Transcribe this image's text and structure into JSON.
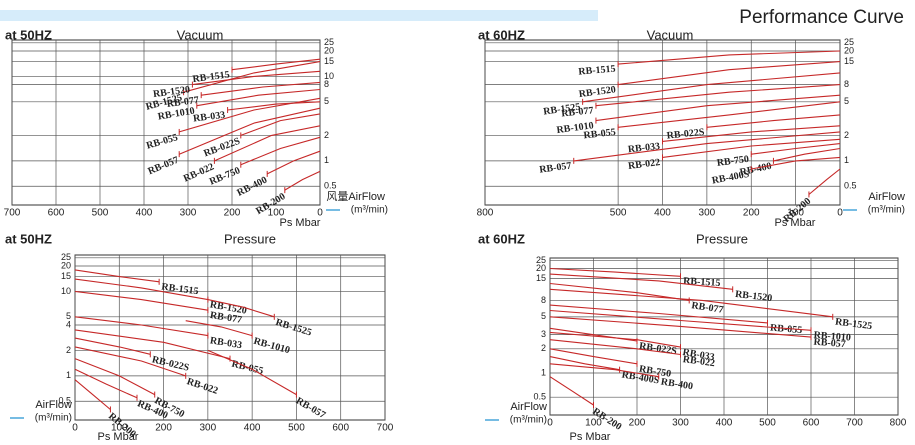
{
  "title": "Performance Curve",
  "chart_data": [
    {
      "type": "line",
      "freq": "at 50HZ",
      "title": "Vacuum",
      "x_label": "Ps Mbar",
      "y_label": "风量AirFlow",
      "y_unit": "(m³/min)",
      "xlim": [
        700,
        0
      ],
      "ylim": [
        0.3,
        27
      ],
      "log_y": true,
      "grid": true,
      "color": "#c62828",
      "accent": "#c00000",
      "xticks": [
        700,
        600,
        500,
        400,
        300,
        200,
        100,
        0
      ],
      "yticks": [
        25,
        20,
        15,
        10,
        8,
        5,
        2,
        1,
        0.5
      ],
      "series": [
        {
          "name": "RB-1525",
          "x": [
            310,
            150,
            0
          ],
          "values": [
            6.5,
            11,
            15
          ]
        },
        {
          "name": "RB-1515",
          "x": [
            200,
            100,
            0
          ],
          "values": [
            12,
            14,
            16
          ]
        },
        {
          "name": "RB-1520",
          "x": [
            290,
            150,
            0
          ],
          "values": [
            8,
            10,
            11.5
          ]
        },
        {
          "name": "RB-077",
          "x": [
            270,
            130,
            0
          ],
          "values": [
            6,
            7.5,
            8.5
          ]
        },
        {
          "name": "RB-1010",
          "x": [
            280,
            140,
            0
          ],
          "values": [
            4.5,
            6,
            7
          ]
        },
        {
          "name": "RB-033",
          "x": [
            210,
            100,
            0
          ],
          "values": [
            4,
            4.7,
            5
          ]
        },
        {
          "name": "RB-055",
          "x": [
            320,
            150,
            0
          ],
          "values": [
            2.2,
            4,
            5.5
          ]
        },
        {
          "name": "RB-057",
          "x": [
            320,
            150,
            0
          ],
          "values": [
            1.2,
            2.8,
            4.2
          ]
        },
        {
          "name": "RB-022S",
          "x": [
            180,
            90,
            0
          ],
          "values": [
            2,
            3,
            3.6
          ]
        },
        {
          "name": "RB-022",
          "x": [
            240,
            110,
            0
          ],
          "values": [
            1,
            2,
            2.6
          ]
        },
        {
          "name": "RB-750",
          "x": [
            180,
            90,
            0
          ],
          "values": [
            0.9,
            1.4,
            1.9
          ]
        },
        {
          "name": "RB-400",
          "x": [
            120,
            60,
            0
          ],
          "values": [
            0.7,
            1,
            1.3
          ]
        },
        {
          "name": "RB-200",
          "x": [
            80,
            40,
            0
          ],
          "values": [
            0.45,
            0.6,
            0.75
          ]
        }
      ]
    },
    {
      "type": "line",
      "freq": "at 60HZ",
      "title": "Vacuum",
      "x_label": "Ps Mbar",
      "y_label": "AirFlow",
      "y_unit": "(m³/min)",
      "xlim": [
        800,
        0
      ],
      "ylim": [
        0.3,
        27
      ],
      "log_y": true,
      "grid": true,
      "color": "#c62828",
      "accent": "#1a8fd0",
      "xticks": [
        800,
        500,
        400,
        300,
        200,
        100,
        0
      ],
      "yticks": [
        25,
        20,
        15,
        8,
        5,
        2,
        1,
        0.5
      ],
      "series": [
        {
          "name": "RB-1515",
          "x": [
            500,
            250,
            0
          ],
          "values": [
            14,
            18,
            20
          ]
        },
        {
          "name": "RB-1520",
          "x": [
            500,
            250,
            0
          ],
          "values": [
            8,
            12,
            15
          ]
        },
        {
          "name": "RB-1525",
          "x": [
            580,
            300,
            0
          ],
          "values": [
            5,
            8,
            11
          ]
        },
        {
          "name": "RB-077",
          "x": [
            550,
            250,
            0
          ],
          "values": [
            4.5,
            6.5,
            8
          ]
        },
        {
          "name": "RB-1010",
          "x": [
            550,
            300,
            0
          ],
          "values": [
            3,
            4.5,
            6
          ]
        },
        {
          "name": "RB-055",
          "x": [
            500,
            250,
            0
          ],
          "values": [
            2.5,
            3.5,
            5
          ]
        },
        {
          "name": "RB-022S",
          "x": [
            300,
            150,
            0
          ],
          "values": [
            2.5,
            3,
            3.5
          ]
        },
        {
          "name": "RB-033",
          "x": [
            400,
            200,
            0
          ],
          "values": [
            1.7,
            2.2,
            2.6
          ]
        },
        {
          "name": "RB-057",
          "x": [
            600,
            300,
            0
          ],
          "values": [
            1,
            1.6,
            2.2
          ]
        },
        {
          "name": "RB-022",
          "x": [
            400,
            200,
            0
          ],
          "values": [
            1.1,
            1.5,
            1.8
          ]
        },
        {
          "name": "RB-750",
          "x": [
            200,
            100,
            0
          ],
          "values": [
            1.2,
            1.4,
            1.6
          ]
        },
        {
          "name": "RB-400",
          "x": [
            150,
            80,
            0
          ],
          "values": [
            1,
            1.2,
            1.4
          ]
        },
        {
          "name": "RB-400S",
          "x": [
            200,
            100,
            0
          ],
          "values": [
            0.8,
            1,
            1.1
          ]
        },
        {
          "name": "RB-200",
          "x": [
            70,
            30,
            0
          ],
          "values": [
            0.4,
            0.6,
            0.8
          ]
        }
      ]
    },
    {
      "type": "line",
      "freq": "at 50HZ",
      "title": "Pressure",
      "x_label": "Ps Mbar",
      "y_label": "AirFlow",
      "y_unit": "(m³/min)",
      "xlim": [
        0,
        700
      ],
      "ylim": [
        0.3,
        27
      ],
      "log_y": true,
      "grid": true,
      "color": "#c62828",
      "accent": "#c00000",
      "xticks": [
        0,
        100,
        200,
        300,
        400,
        500,
        600,
        700
      ],
      "yticks": [
        25,
        20,
        15,
        10,
        5,
        4,
        2,
        1,
        0.5
      ],
      "series": [
        {
          "name": "RB-1515",
          "x": [
            0,
            100,
            190
          ],
          "values": [
            18,
            15,
            13
          ]
        },
        {
          "name": "RB-1520",
          "x": [
            0,
            150,
            300
          ],
          "values": [
            14,
            11,
            8
          ]
        },
        {
          "name": "RB-077",
          "x": [
            0,
            150,
            300
          ],
          "values": [
            10,
            8,
            6
          ]
        },
        {
          "name": "RB-1525",
          "x": [
            300,
            380,
            450
          ],
          "values": [
            8,
            6.5,
            5
          ]
        },
        {
          "name": "RB-033",
          "x": [
            0,
            150,
            300
          ],
          "values": [
            5,
            4,
            3
          ]
        },
        {
          "name": "RB-1010",
          "x": [
            250,
            330,
            400
          ],
          "values": [
            4.5,
            3.8,
            3
          ]
        },
        {
          "name": "RB-055",
          "x": [
            0,
            200,
            350
          ],
          "values": [
            3.5,
            2.5,
            1.6
          ]
        },
        {
          "name": "RB-057",
          "x": [
            300,
            400,
            500
          ],
          "values": [
            2,
            1.2,
            0.6
          ]
        },
        {
          "name": "RB-022S",
          "x": [
            0,
            100,
            170
          ],
          "values": [
            2.8,
            2.2,
            1.8
          ]
        },
        {
          "name": "RB-022",
          "x": [
            0,
            150,
            250
          ],
          "values": [
            2.2,
            1.5,
            1
          ]
        },
        {
          "name": "RB-750",
          "x": [
            0,
            100,
            180
          ],
          "values": [
            1.6,
            1,
            0.6
          ]
        },
        {
          "name": "RB-400",
          "x": [
            0,
            70,
            140
          ],
          "values": [
            1.2,
            0.8,
            0.55
          ]
        },
        {
          "name": "RB-200",
          "x": [
            0,
            40,
            80
          ],
          "values": [
            0.9,
            0.6,
            0.4
          ]
        }
      ]
    },
    {
      "type": "line",
      "freq": "at 60HZ",
      "title": "Pressure",
      "x_label": "Ps Mbar",
      "y_label": "AirFlow",
      "y_unit": "(m³/min)",
      "xlim": [
        0,
        800
      ],
      "ylim": [
        0.3,
        27
      ],
      "log_y": true,
      "grid": true,
      "color": "#c62828",
      "accent": "#1a8fd0",
      "xticks": [
        0,
        100,
        200,
        300,
        400,
        500,
        600,
        700,
        800
      ],
      "yticks": [
        25,
        20,
        15,
        8,
        5,
        3,
        2,
        1,
        0.5
      ],
      "series": [
        {
          "name": "RB-1515",
          "x": [
            0,
            150,
            300
          ],
          "values": [
            20,
            18,
            16
          ]
        },
        {
          "name": "RB-1520",
          "x": [
            0,
            250,
            420
          ],
          "values": [
            17,
            14,
            11
          ]
        },
        {
          "name": "RB-077",
          "x": [
            0,
            200,
            320
          ],
          "values": [
            13,
            10,
            8
          ]
        },
        {
          "name": "RB-1525",
          "x": [
            0,
            350,
            650
          ],
          "values": [
            11,
            8,
            5
          ]
        },
        {
          "name": "RB-055",
          "x": [
            0,
            250,
            500
          ],
          "values": [
            7,
            5.5,
            4.2
          ]
        },
        {
          "name": "RB-1010",
          "x": [
            0,
            300,
            600
          ],
          "values": [
            6,
            4.5,
            3.4
          ]
        },
        {
          "name": "RB-057",
          "x": [
            0,
            300,
            600
          ],
          "values": [
            5,
            3.8,
            2.8
          ]
        },
        {
          "name": "RB-022S",
          "x": [
            0,
            100,
            200
          ],
          "values": [
            3.6,
            3,
            2.5
          ]
        },
        {
          "name": "RB-033",
          "x": [
            0,
            200,
            300
          ],
          "values": [
            3.2,
            2.6,
            2.1
          ]
        },
        {
          "name": "RB-022",
          "x": [
            0,
            200,
            300
          ],
          "values": [
            2.6,
            2,
            1.7
          ]
        },
        {
          "name": "RB-750",
          "x": [
            0,
            100,
            200
          ],
          "values": [
            2,
            1.6,
            1.3
          ]
        },
        {
          "name": "RB-400S",
          "x": [
            0,
            80,
            160
          ],
          "values": [
            1.6,
            1.3,
            1.1
          ]
        },
        {
          "name": "RB-400",
          "x": [
            0,
            150,
            250
          ],
          "values": [
            1.3,
            1.1,
            0.9
          ]
        },
        {
          "name": "RB-200",
          "x": [
            0,
            50,
            100
          ],
          "values": [
            0.9,
            0.6,
            0.4
          ]
        }
      ]
    }
  ]
}
